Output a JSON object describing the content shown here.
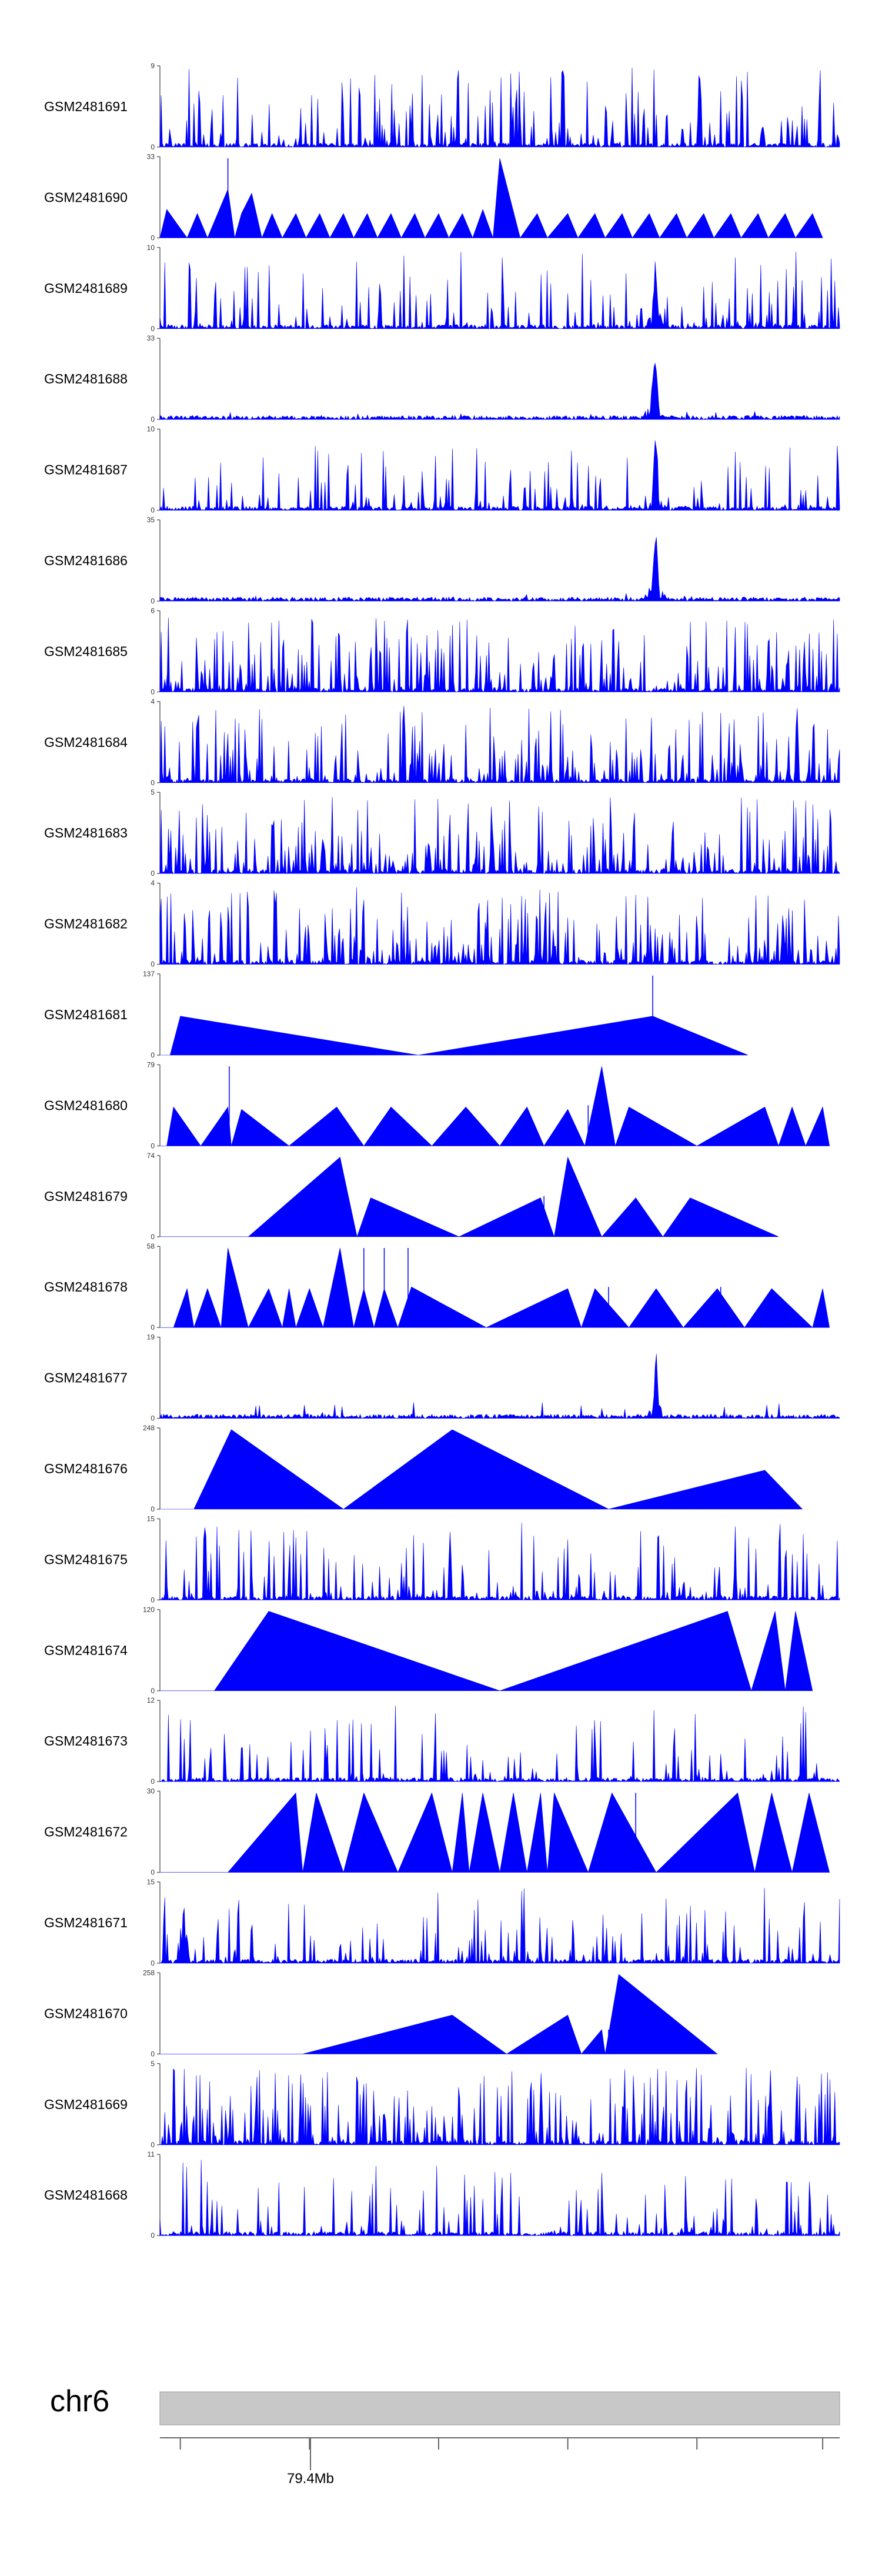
{
  "chart_data": {
    "type": "area",
    "fill_color": "#0000ff",
    "axis_color": "#666666",
    "chromosome": {
      "label": "chr6",
      "bar_color": "#c8c8c8",
      "position_label": "79.4Mb"
    },
    "tracks": [
      {
        "label": "GSM2481691",
        "ymin": "0",
        "ymax": "9",
        "shape": "noise",
        "density": 0.42,
        "seed": 11,
        "peak": 0.98,
        "focus": null
      },
      {
        "label": "GSM2481690",
        "ymin": "0",
        "ymax": "33",
        "shape": "tri",
        "seed": 12,
        "pts": [
          [
            0.01,
            0.35
          ],
          [
            0.04,
            0
          ],
          [
            0.055,
            0.3
          ],
          [
            0.07,
            0
          ],
          [
            0.09,
            0.4
          ],
          [
            0.1,
            0.6
          ],
          [
            0.11,
            0
          ],
          [
            0.12,
            0.3
          ],
          [
            0.135,
            0.55
          ],
          [
            0.15,
            0
          ],
          [
            0.165,
            0.3
          ],
          [
            0.18,
            0
          ],
          [
            0.2,
            0.3
          ],
          [
            0.215,
            0
          ],
          [
            0.235,
            0.3
          ],
          [
            0.25,
            0
          ],
          [
            0.27,
            0.3
          ],
          [
            0.285,
            0
          ],
          [
            0.305,
            0.3
          ],
          [
            0.32,
            0
          ],
          [
            0.34,
            0.3
          ],
          [
            0.355,
            0
          ],
          [
            0.375,
            0.3
          ],
          [
            0.39,
            0
          ],
          [
            0.41,
            0.3
          ],
          [
            0.425,
            0
          ],
          [
            0.445,
            0.3
          ],
          [
            0.46,
            0
          ],
          [
            0.475,
            0.35
          ],
          [
            0.49,
            0
          ],
          [
            0.5,
            0.98
          ],
          [
            0.53,
            0
          ],
          [
            0.555,
            0.3
          ],
          [
            0.57,
            0
          ],
          [
            0.6,
            0.3
          ],
          [
            0.615,
            0
          ],
          [
            0.64,
            0.3
          ],
          [
            0.655,
            0
          ],
          [
            0.68,
            0.3
          ],
          [
            0.695,
            0
          ],
          [
            0.72,
            0.3
          ],
          [
            0.735,
            0
          ],
          [
            0.76,
            0.3
          ],
          [
            0.775,
            0
          ],
          [
            0.8,
            0.3
          ],
          [
            0.815,
            0
          ],
          [
            0.84,
            0.3
          ],
          [
            0.855,
            0
          ],
          [
            0.88,
            0.3
          ],
          [
            0.895,
            0
          ],
          [
            0.92,
            0.3
          ],
          [
            0.935,
            0
          ],
          [
            0.96,
            0.3
          ],
          [
            0.975,
            0
          ]
        ],
        "spikes": [
          [
            0.1,
            0.98
          ]
        ]
      },
      {
        "label": "GSM2481689",
        "ymin": "0",
        "ymax": "10",
        "shape": "noise",
        "density": 0.32,
        "seed": 13,
        "peak": 0.95,
        "focus": [
          0.729,
          0.006,
          1.0
        ]
      },
      {
        "label": "GSM2481688",
        "ymin": "0",
        "ymax": "33",
        "shape": "noise",
        "density": 0.06,
        "seed": 14,
        "peak": 0.1,
        "focus": [
          0.728,
          0.008,
          0.95
        ]
      },
      {
        "label": "GSM2481687",
        "ymin": "0",
        "ymax": "10",
        "shape": "noise",
        "density": 0.32,
        "seed": 15,
        "peak": 0.8,
        "focus": [
          0.729,
          0.006,
          1.0
        ]
      },
      {
        "label": "GSM2481686",
        "ymin": "0",
        "ymax": "35",
        "shape": "noise",
        "density": 0.05,
        "seed": 16,
        "peak": 0.12,
        "focus": [
          0.729,
          0.007,
          1.0
        ]
      },
      {
        "label": "GSM2481685",
        "ymin": "0",
        "ymax": "6",
        "shape": "noise",
        "density": 0.55,
        "seed": 17,
        "peak": 0.95,
        "focus": null
      },
      {
        "label": "GSM2481684",
        "ymin": "0",
        "ymax": "4",
        "shape": "noise",
        "density": 0.5,
        "seed": 18,
        "peak": 0.95,
        "focus": null
      },
      {
        "label": "GSM2481683",
        "ymin": "0",
        "ymax": "5",
        "shape": "noise",
        "density": 0.55,
        "seed": 19,
        "peak": 0.95,
        "focus": null
      },
      {
        "label": "GSM2481682",
        "ymin": "0",
        "ymax": "4",
        "shape": "noise",
        "density": 0.55,
        "seed": 20,
        "peak": 0.95,
        "focus": null
      },
      {
        "label": "GSM2481681",
        "ymin": "0",
        "ymax": "137",
        "shape": "tri",
        "seed": 21,
        "pts": [
          [
            0.015,
            0
          ],
          [
            0.03,
            0.48
          ],
          [
            0.38,
            0
          ],
          [
            0.725,
            0.48
          ],
          [
            0.865,
            0
          ]
        ],
        "spikes": [
          [
            0.725,
            0.98
          ]
        ]
      },
      {
        "label": "GSM2481680",
        "ymin": "0",
        "ymax": "79",
        "shape": "tri",
        "seed": 22,
        "pts": [
          [
            0.01,
            0
          ],
          [
            0.02,
            0.48
          ],
          [
            0.06,
            0
          ],
          [
            0.1,
            0.48
          ],
          [
            0.105,
            0
          ],
          [
            0.12,
            0.45
          ],
          [
            0.19,
            0
          ],
          [
            0.26,
            0.48
          ],
          [
            0.3,
            0
          ],
          [
            0.34,
            0.48
          ],
          [
            0.4,
            0
          ],
          [
            0.45,
            0.48
          ],
          [
            0.5,
            0
          ],
          [
            0.54,
            0.48
          ],
          [
            0.565,
            0
          ],
          [
            0.6,
            0.45
          ],
          [
            0.625,
            0
          ],
          [
            0.65,
            0.98
          ],
          [
            0.67,
            0
          ],
          [
            0.69,
            0.48
          ],
          [
            0.79,
            0
          ],
          [
            0.89,
            0.48
          ],
          [
            0.91,
            0
          ],
          [
            0.93,
            0.48
          ],
          [
            0.95,
            0
          ],
          [
            0.975,
            0.48
          ],
          [
            0.985,
            0
          ]
        ],
        "spikes": [
          [
            0.102,
            0.98
          ],
          [
            0.63,
            0.5
          ]
        ]
      },
      {
        "label": "GSM2481679",
        "ymin": "0",
        "ymax": "74",
        "shape": "tri",
        "seed": 23,
        "pts": [
          [
            0.13,
            0
          ],
          [
            0.265,
            0.98
          ],
          [
            0.29,
            0
          ],
          [
            0.31,
            0.48
          ],
          [
            0.44,
            0
          ],
          [
            0.56,
            0.48
          ],
          [
            0.58,
            0
          ],
          [
            0.6,
            0.98
          ],
          [
            0.65,
            0
          ],
          [
            0.7,
            0.48
          ],
          [
            0.74,
            0
          ],
          [
            0.78,
            0.48
          ],
          [
            0.91,
            0
          ]
        ],
        "spikes": [
          [
            0.565,
            0.5
          ]
        ]
      },
      {
        "label": "GSM2481678",
        "ymin": "0",
        "ymax": "58",
        "shape": "tri",
        "seed": 24,
        "pts": [
          [
            0.02,
            0
          ],
          [
            0.04,
            0.48
          ],
          [
            0.05,
            0
          ],
          [
            0.07,
            0.48
          ],
          [
            0.09,
            0
          ],
          [
            0.1,
            0.98
          ],
          [
            0.13,
            0
          ],
          [
            0.16,
            0.48
          ],
          [
            0.18,
            0
          ],
          [
            0.19,
            0.48
          ],
          [
            0.2,
            0
          ],
          [
            0.22,
            0.48
          ],
          [
            0.24,
            0
          ],
          [
            0.265,
            0.98
          ],
          [
            0.285,
            0
          ],
          [
            0.3,
            0.48
          ],
          [
            0.315,
            0
          ],
          [
            0.33,
            0.48
          ],
          [
            0.35,
            0
          ],
          [
            0.37,
            0.5
          ],
          [
            0.48,
            0
          ],
          [
            0.6,
            0.48
          ],
          [
            0.62,
            0
          ],
          [
            0.64,
            0.48
          ],
          [
            0.69,
            0
          ],
          [
            0.73,
            0.48
          ],
          [
            0.77,
            0
          ],
          [
            0.82,
            0.48
          ],
          [
            0.86,
            0
          ],
          [
            0.9,
            0.48
          ],
          [
            0.96,
            0
          ],
          [
            0.975,
            0.48
          ],
          [
            0.985,
            0
          ]
        ],
        "spikes": [
          [
            0.3,
            0.98
          ],
          [
            0.33,
            0.98
          ],
          [
            0.365,
            0.98
          ],
          [
            0.66,
            0.5
          ],
          [
            0.825,
            0.5
          ]
        ]
      },
      {
        "label": "GSM2481677",
        "ymin": "0",
        "ymax": "19",
        "shape": "noise",
        "density": 0.1,
        "seed": 25,
        "peak": 0.2,
        "focus": [
          0.73,
          0.005,
          1.0
        ]
      },
      {
        "label": "GSM2481676",
        "ymin": "0",
        "ymax": "248",
        "shape": "tri",
        "seed": 26,
        "pts": [
          [
            0.05,
            0
          ],
          [
            0.105,
            0.98
          ],
          [
            0.27,
            0
          ],
          [
            0.43,
            0.98
          ],
          [
            0.66,
            0
          ],
          [
            0.89,
            0.48
          ],
          [
            0.945,
            0
          ]
        ],
        "spikes": []
      },
      {
        "label": "GSM2481675",
        "ymin": "0",
        "ymax": "15",
        "shape": "noise",
        "density": 0.4,
        "seed": 27,
        "peak": 0.95,
        "focus": null
      },
      {
        "label": "GSM2481674",
        "ymin": "0",
        "ymax": "120",
        "shape": "tri",
        "seed": 28,
        "pts": [
          [
            0.08,
            0
          ],
          [
            0.16,
            0.98
          ],
          [
            0.5,
            0
          ],
          [
            0.835,
            0.98
          ],
          [
            0.87,
            0
          ],
          [
            0.905,
            0.98
          ],
          [
            0.92,
            0
          ],
          [
            0.935,
            0.98
          ],
          [
            0.96,
            0
          ]
        ],
        "spikes": []
      },
      {
        "label": "GSM2481673",
        "ymin": "0",
        "ymax": "12",
        "shape": "noise",
        "density": 0.25,
        "seed": 29,
        "peak": 0.95,
        "focus": null
      },
      {
        "label": "GSM2481672",
        "ymin": "0",
        "ymax": "30",
        "shape": "tri",
        "seed": 30,
        "pts": [
          [
            0.1,
            0
          ],
          [
            0.2,
            0.98
          ],
          [
            0.21,
            0
          ],
          [
            0.23,
            0.98
          ],
          [
            0.27,
            0
          ],
          [
            0.3,
            0.98
          ],
          [
            0.35,
            0
          ],
          [
            0.4,
            0.98
          ],
          [
            0.43,
            0
          ],
          [
            0.445,
            0.98
          ],
          [
            0.455,
            0
          ],
          [
            0.475,
            0.98
          ],
          [
            0.5,
            0
          ],
          [
            0.52,
            0.98
          ],
          [
            0.54,
            0
          ],
          [
            0.56,
            0.98
          ],
          [
            0.57,
            0
          ],
          [
            0.58,
            0.98
          ],
          [
            0.63,
            0
          ],
          [
            0.665,
            0.98
          ],
          [
            0.73,
            0
          ],
          [
            0.85,
            0.98
          ],
          [
            0.875,
            0
          ],
          [
            0.9,
            0.98
          ],
          [
            0.93,
            0
          ],
          [
            0.955,
            0.98
          ],
          [
            0.985,
            0
          ]
        ],
        "spikes": [
          [
            0.7,
            0.98
          ]
        ]
      },
      {
        "label": "GSM2481671",
        "ymin": "0",
        "ymax": "15",
        "shape": "noise",
        "density": 0.3,
        "seed": 31,
        "peak": 0.95,
        "focus": [
          0.035,
          0.004,
          0.98
        ]
      },
      {
        "label": "GSM2481670",
        "ymin": "0",
        "ymax": "258",
        "shape": "tri",
        "seed": 32,
        "pts": [
          [
            0.21,
            0
          ],
          [
            0.43,
            0.48
          ],
          [
            0.51,
            0
          ],
          [
            0.6,
            0.48
          ],
          [
            0.62,
            0
          ],
          [
            0.65,
            0.3
          ],
          [
            0.655,
            0
          ],
          [
            0.675,
            0.98
          ],
          [
            0.82,
            0
          ]
        ],
        "spikes": [
          [
            0.66,
            0.3
          ]
        ]
      },
      {
        "label": "GSM2481669",
        "ymin": "0",
        "ymax": "5",
        "shape": "noise",
        "density": 0.55,
        "seed": 33,
        "peak": 0.95,
        "focus": null
      },
      {
        "label": "GSM2481668",
        "ymin": "0",
        "ymax": "11",
        "shape": "noise",
        "density": 0.3,
        "seed": 34,
        "peak": 0.95,
        "focus": null
      }
    ]
  }
}
